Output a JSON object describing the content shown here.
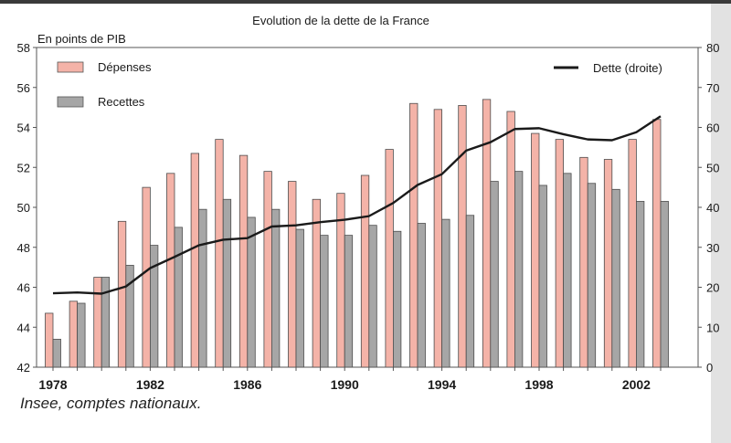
{
  "chart_data": {
    "type": "bar",
    "title": "Evolution de la dette de la France",
    "ylabel": "En points de PIB",
    "ylim": [
      42,
      58
    ],
    "yticks": [
      42,
      44,
      46,
      48,
      50,
      52,
      54,
      56,
      58
    ],
    "y2lim": [
      0,
      80
    ],
    "y2ticks": [
      0,
      10,
      20,
      30,
      40,
      50,
      60,
      70,
      80
    ],
    "x": [
      1978,
      1979,
      1980,
      1981,
      1982,
      1983,
      1984,
      1985,
      1986,
      1987,
      1988,
      1989,
      1990,
      1991,
      1992,
      1993,
      1994,
      1995,
      1996,
      1997,
      1998,
      1999,
      2000,
      2001,
      2002,
      2003
    ],
    "xticks": [
      1978,
      1982,
      1986,
      1990,
      1994,
      1998,
      2002
    ],
    "series": [
      {
        "name": "Dépenses",
        "kind": "bar",
        "axis": "left",
        "color": "#f4b3a8",
        "values": [
          44.7,
          45.3,
          46.5,
          49.3,
          51.0,
          51.7,
          52.7,
          53.4,
          52.6,
          51.8,
          51.3,
          50.4,
          50.7,
          51.6,
          52.9,
          55.2,
          54.9,
          55.1,
          55.4,
          54.8,
          53.7,
          53.4,
          52.5,
          52.4,
          53.4,
          54.4
        ]
      },
      {
        "name": "Recettes",
        "kind": "bar",
        "axis": "left",
        "color": "#a6a6a6",
        "values": [
          43.4,
          45.2,
          46.5,
          47.1,
          48.1,
          49.0,
          49.9,
          50.4,
          49.5,
          49.9,
          48.9,
          48.6,
          48.6,
          49.1,
          48.8,
          49.2,
          49.4,
          49.6,
          51.3,
          51.8,
          51.1,
          51.7,
          51.2,
          50.9,
          50.3,
          50.3
        ]
      },
      {
        "name": "Dette (droite)",
        "kind": "line",
        "axis": "right",
        "color": "#1a1a1a",
        "values": [
          18.5,
          18.7,
          18.4,
          20.2,
          24.8,
          27.6,
          30.5,
          31.9,
          32.3,
          35.2,
          35.5,
          36.3,
          36.9,
          37.8,
          41.1,
          45.6,
          48.3,
          54.2,
          56.3,
          59.6,
          59.8,
          58.3,
          57.0,
          56.8,
          58.8,
          62.8
        ]
      }
    ],
    "legend": {
      "placement": "top"
    },
    "source": "Insee, comptes nationaux."
  }
}
